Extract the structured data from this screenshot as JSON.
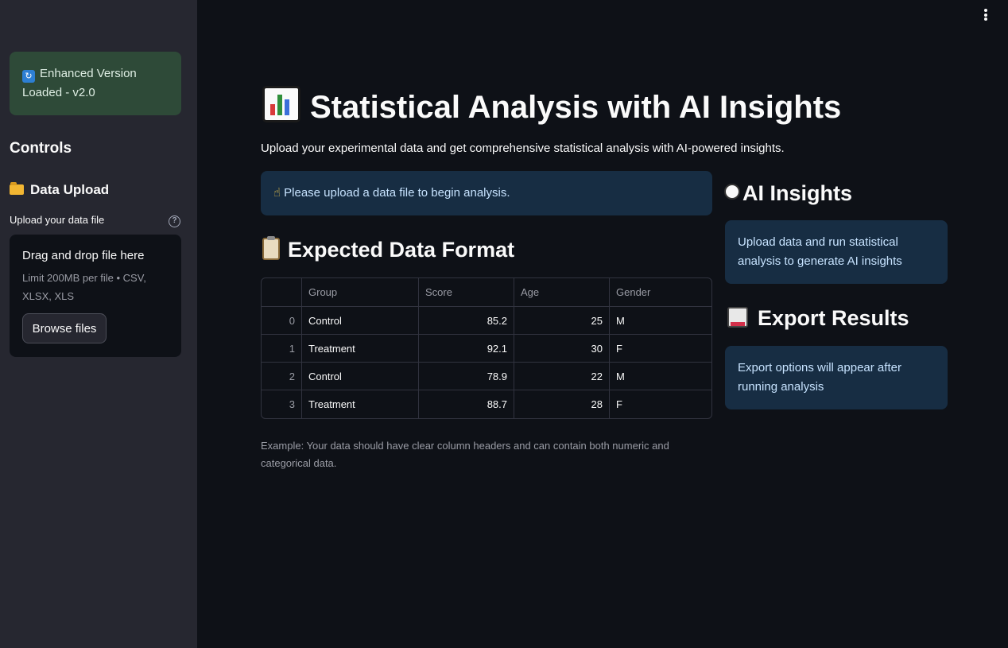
{
  "sidebar": {
    "version_badge": "Enhanced Version Loaded - v2.0",
    "controls_title": "Controls",
    "upload_section_title": "Data Upload",
    "upload_label": "Upload your data file",
    "dropzone_title": "Drag and drop file here",
    "dropzone_limit": "Limit 200MB per file • CSV, XLSX, XLS",
    "browse_label": "Browse files"
  },
  "main": {
    "title": "Statistical Analysis with AI Insights",
    "subtitle": "Upload your experimental data and get comprehensive statistical analysis with AI-powered insights.",
    "info_message": "Please upload a data file to begin analysis.",
    "format_title": "Expected Data Format",
    "table": {
      "columns": [
        "",
        "Group",
        "Score",
        "Age",
        "Gender"
      ],
      "rows": [
        {
          "idx": "0",
          "group": "Control",
          "score": "85.2",
          "age": "25",
          "gender": "M"
        },
        {
          "idx": "1",
          "group": "Treatment",
          "score": "92.1",
          "age": "30",
          "gender": "F"
        },
        {
          "idx": "2",
          "group": "Control",
          "score": "78.9",
          "age": "22",
          "gender": "M"
        },
        {
          "idx": "3",
          "group": "Treatment",
          "score": "88.7",
          "age": "28",
          "gender": "F"
        }
      ]
    },
    "example_note": "Example: Your data should have clear column headers and can contain both numeric and categorical data."
  },
  "right": {
    "ai_title": "AI Insights",
    "ai_message": "Upload data and run statistical analysis to generate AI insights",
    "export_title": "Export Results",
    "export_message": "Export options will appear after running analysis"
  },
  "colors": {
    "background": "#0e1117",
    "sidebar": "#262730",
    "success_box": "#2e4a38",
    "info_box": "#172d43",
    "info_text": "#c7e3ff"
  },
  "icons": {
    "version": "refresh-emoji-icon",
    "upload": "folder-icon",
    "title": "bar-chart-icon",
    "info": "pointing-hand-icon",
    "format": "clipboard-icon",
    "ai": "robot-face-icon",
    "export": "floppy-disk-icon",
    "menu": "kebab-menu-icon"
  }
}
